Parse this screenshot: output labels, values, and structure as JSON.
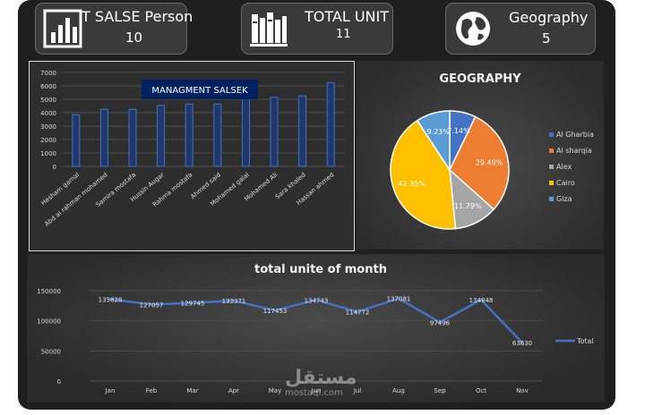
{
  "kpis": {
    "persons": {
      "title": "T SALSE Person",
      "value": "10",
      "icon": "bar-chart-icon"
    },
    "units": {
      "title": "TOTAL UNIT",
      "value": "11",
      "icon": "books-icon"
    },
    "geo": {
      "title": "Geography",
      "value": "5",
      "icon": "globe-icon"
    }
  },
  "colors": {
    "bar": "#2f5597",
    "line": "#4472c4",
    "algharbia": "#4472c4",
    "alsharqia": "#ed7d31",
    "alex": "#a5a5a5",
    "cairo": "#ffc000",
    "giza": "#5b9bd5"
  },
  "chart_data": [
    {
      "type": "bar",
      "title": "MANAGMENT SALSEK",
      "categories": [
        "Hesham gamal",
        "Abd al rahman mohamed",
        "Samira mostafa",
        "Hussin Augar",
        "Rahma mostafa",
        "Ahmed said",
        "Mohamed galal",
        "Mohamed Ali",
        "Sara khaled",
        "Hassan ahmed"
      ],
      "values": [
        3850,
        4250,
        4250,
        4550,
        4650,
        4650,
        5050,
        5150,
        5250,
        6250
      ],
      "ylim": [
        0,
        7000
      ],
      "yticks": [
        "0",
        "1000",
        "2000",
        "3000",
        "4000",
        "5000",
        "6000",
        "7000"
      ],
      "grid": true
    },
    {
      "type": "pie",
      "title": "GEOGRAPHY",
      "labels": [
        "Al Gharbia",
        "Al sharqia",
        "Alex",
        "Cairo",
        "Giza"
      ],
      "values": [
        7.14,
        29.49,
        11.79,
        42.35,
        9.23
      ],
      "value_labels": [
        "7.14%",
        "29.49%",
        "11.79%",
        "42.35%",
        "9.23%"
      ],
      "legend": "right"
    },
    {
      "type": "line",
      "title": "total unite of month",
      "x": [
        "Jan",
        "Feb",
        "Mar",
        "Apr",
        "May",
        "Jun",
        "Jul",
        "Aug",
        "Sep",
        "Oct",
        "Nov"
      ],
      "series": [
        {
          "name": "Total",
          "values": [
            135828,
            127057,
            129745,
            133371,
            117453,
            134743,
            114772,
            137081,
            97496,
            134848,
            63630
          ]
        }
      ],
      "ylim": [
        0,
        150000
      ],
      "yticks": [
        "0",
        "50000",
        "100000",
        "150000"
      ],
      "legend": "right"
    }
  ],
  "watermark": {
    "arabic": "مستقل",
    "latin": "mostaql.com"
  }
}
